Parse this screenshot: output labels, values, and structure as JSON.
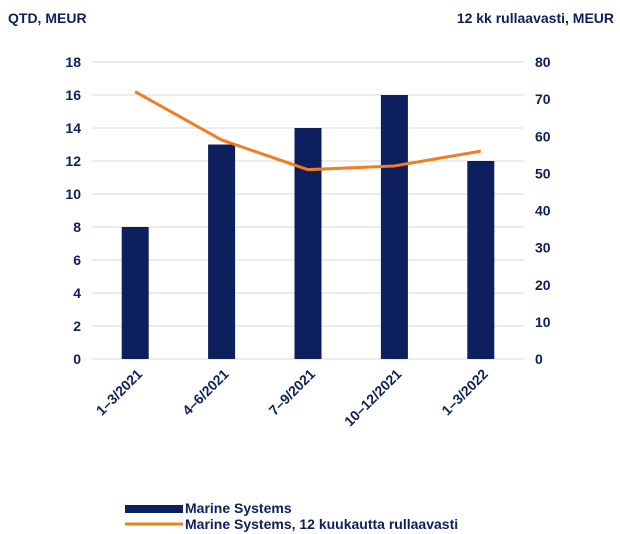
{
  "chart_data": {
    "type": "bar",
    "ylabel_left": "QTD, MEUR",
    "ylabel_right": "12 kk rullaavasti, MEUR",
    "categories": [
      "1–3/2021",
      "4–6/2021",
      "7–9/2021",
      "10–12/2021",
      "1–3/2022"
    ],
    "ylim_left": [
      0,
      18
    ],
    "yticks_left": [
      0,
      2,
      4,
      6,
      8,
      10,
      12,
      14,
      16,
      18
    ],
    "ylim_right": [
      0,
      80
    ],
    "yticks_right": [
      0,
      10,
      20,
      30,
      40,
      50,
      60,
      70,
      80
    ],
    "grid": true,
    "legend_position": "bottom",
    "series": [
      {
        "name": "Marine Systems",
        "type": "bar",
        "axis": "left",
        "color": "#0d1f5c",
        "values": [
          8,
          13,
          14,
          16,
          12
        ]
      },
      {
        "name": "Marine Systems, 12 kuukautta rullaavasti",
        "type": "line",
        "axis": "right",
        "color": "#f07d1e",
        "values": [
          72,
          59,
          51,
          52,
          56
        ]
      }
    ]
  }
}
